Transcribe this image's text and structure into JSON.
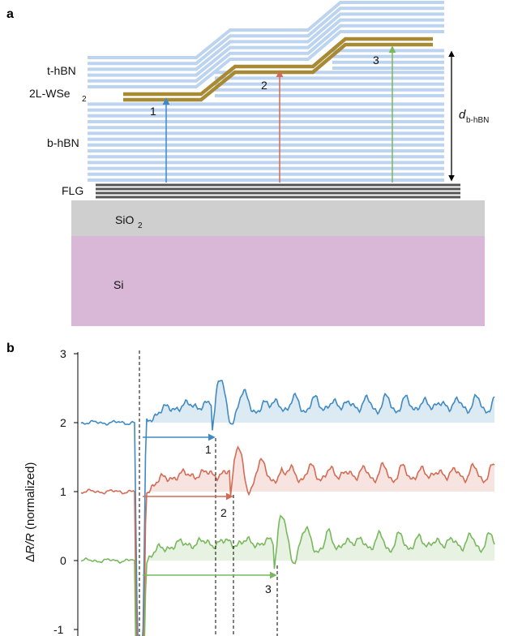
{
  "panel_a": {
    "panel_letter": "a",
    "labels": {
      "t_hbn": "t-hBN",
      "wse2_prefix": "2L-WSe",
      "wse2_subscript": "2",
      "b_hbn": "b-hBN",
      "flg": "FLG",
      "sio2_prefix": "SiO",
      "sio2_subscript": "2",
      "si": "Si",
      "thickness_main": "d",
      "thickness_sub": "b-hBN"
    },
    "arrow_labels": [
      "1",
      "2",
      "3"
    ],
    "colors": {
      "hbn": "#bcd4ef",
      "wse2": "#a88a35",
      "flg": "#555555",
      "sio2": "#cfcfcf",
      "si": "#d9b7d7",
      "arrow1": "#3f8ac2",
      "arrow2": "#d46b55",
      "arrow3": "#7ab85e"
    }
  },
  "panel_b": {
    "panel_letter": "b",
    "y_axis_label_delta": "Δ",
    "y_axis_label_main": "R/R",
    "y_axis_label_norm": " (normalized)",
    "y_ticks": [
      "3",
      "2",
      "1",
      "0",
      "-1"
    ],
    "marker_labels": [
      "1",
      "2",
      "3"
    ]
  },
  "chart_data": {
    "type": "line",
    "title": "",
    "xlabel": "",
    "ylabel": "ΔR/R (normalized)",
    "ylim": [
      -1,
      3
    ],
    "yticks": [
      -1,
      0,
      1,
      2,
      3
    ],
    "series": [
      {
        "name": "",
        "color": "#3f8ac2",
        "offset": 2
      },
      {
        "name": "",
        "color": "#d46b55",
        "offset": 1
      },
      {
        "name": "",
        "color": "#7ab85e",
        "offset": 0
      }
    ]
  }
}
